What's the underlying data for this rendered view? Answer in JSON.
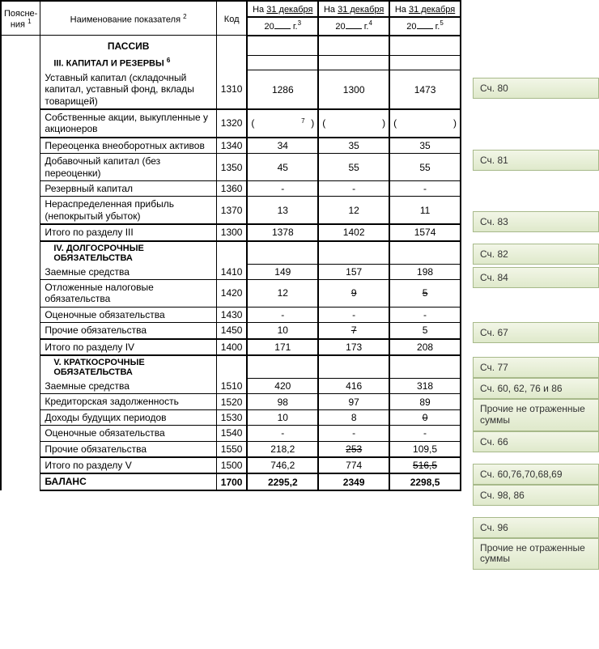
{
  "header": {
    "notes": "Поясне-\nния",
    "name": "Наименование показателя",
    "code": "Код",
    "date_prefix": "На",
    "date_underline": "31 декабря",
    "year_prefix": "20",
    "year_label": "г."
  },
  "sections": {
    "passive": "ПАССИВ",
    "s3": "III. КАПИТАЛ И РЕЗЕРВЫ",
    "s4": "IV. ДОЛГОСРОЧНЫЕ ОБЯЗАТЕЛЬСТВА",
    "s5": "V. КРАТКОСРОЧНЫЕ ОБЯЗАТЕЛЬСТВА"
  },
  "rows": {
    "r1310": {
      "name": "Уставный капитал (складочный капитал, уставный фонд, вклады товарищей)",
      "code": "1310",
      "y1": "1286",
      "y2": "1300",
      "y3": "1473"
    },
    "r1320": {
      "name": "Собственные акции, выкупленные у акционеров",
      "code": "1320",
      "y1": "",
      "y2": "",
      "y3": ""
    },
    "r1340": {
      "name": "Переоценка внеоборотных активов",
      "code": "1340",
      "y1": "34",
      "y2": "35",
      "y3": "35"
    },
    "r1350": {
      "name": "Добавочный капитал (без переоценки)",
      "code": "1350",
      "y1": "45",
      "y2": "55",
      "y3": "55"
    },
    "r1360": {
      "name": "Резервный капитал",
      "code": "1360",
      "y1": "-",
      "y2": "-",
      "y3": "-"
    },
    "r1370": {
      "name": "Нераспределенная прибыль (непокрытый убыток)",
      "code": "1370",
      "y1": "13",
      "y2": "12",
      "y3": "11"
    },
    "r1300": {
      "name": "Итого по разделу III",
      "code": "1300",
      "y1": "1378",
      "y2": "1402",
      "y3": "1574"
    },
    "r1410": {
      "name": "Заемные средства",
      "code": "1410",
      "y1": "149",
      "y2": "157",
      "y3": "198"
    },
    "r1420": {
      "name": "Отложенные налоговые обязательства",
      "code": "1420",
      "y1": "12",
      "y2": "9",
      "y3": "5"
    },
    "r1430": {
      "name": "Оценочные обязательства",
      "code": "1430",
      "y1": "-",
      "y2": "-",
      "y3": "-"
    },
    "r1450": {
      "name": "Прочие обязательства",
      "code": "1450",
      "y1": "10",
      "y2": "7",
      "y3": "5"
    },
    "r1400": {
      "name": "Итого по разделу IV",
      "code": "1400",
      "y1": "171",
      "y2": "173",
      "y3": "208"
    },
    "r1510": {
      "name": "Заемные средства",
      "code": "1510",
      "y1": "420",
      "y2": "416",
      "y3": "318"
    },
    "r1520": {
      "name": "Кредиторская задолженность",
      "code": "1520",
      "y1": "98",
      "y2": "97",
      "y3": "89"
    },
    "r1530": {
      "name": "Доходы будущих периодов",
      "code": "1530",
      "y1": "10",
      "y2": "8",
      "y3": "0"
    },
    "r1540": {
      "name": "Оценочные обязательства",
      "code": "1540",
      "y1": "-",
      "y2": "-",
      "y3": "-"
    },
    "r1550": {
      "name": "Прочие обязательства",
      "code": "1550",
      "y1": "218,2",
      "y2": "253",
      "y3": "109,5"
    },
    "r1500": {
      "name": "Итого по разделу V",
      "code": "1500",
      "y1": "746,2",
      "y2": "774",
      "y3": "516,5"
    },
    "r1700": {
      "name": "БАЛАНС",
      "code": "1700",
      "y1": "2295,2",
      "y2": "2349",
      "y3": "2298,5"
    }
  },
  "annotations": [
    {
      "text": "Сч. 80",
      "gap": 0
    },
    {
      "text": "Сч. 81",
      "gap": 63
    },
    {
      "text": "Сч. 83",
      "gap": 50
    },
    {
      "text": "Сч. 82",
      "gap": 14
    },
    {
      "text": "Сч. 84",
      "gap": 3
    },
    {
      "text": "Сч. 67",
      "gap": 42
    },
    {
      "text": "Сч. 77",
      "gap": 17
    },
    {
      "text": "Сч. 60, 62, 76 и 86",
      "gap": 0
    },
    {
      "text": "Прочие не отраженные суммы",
      "gap": 0,
      "tall": true
    },
    {
      "text": "Сч. 66",
      "gap": 0
    },
    {
      "text": "Сч. 60,76,70,68,69",
      "gap": 14
    },
    {
      "text": "Сч. 98, 86",
      "gap": 0
    },
    {
      "text": "Сч. 96",
      "gap": 14
    },
    {
      "text": "Прочие не отраженные суммы",
      "gap": 0,
      "tall": true
    }
  ],
  "sup": {
    "notes": "1",
    "name": "2",
    "date1": "3",
    "date2": "4",
    "date3": "5",
    "s3": "6",
    "r1320": "7"
  }
}
